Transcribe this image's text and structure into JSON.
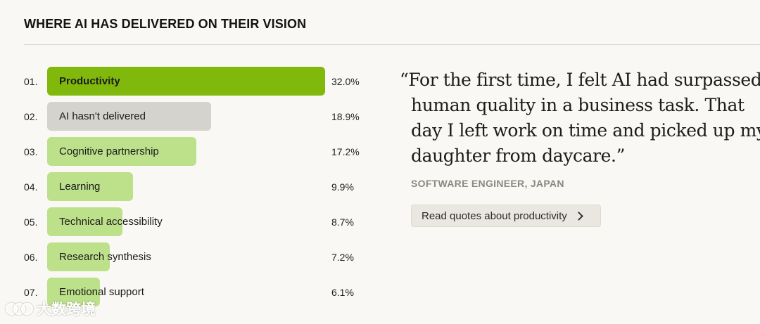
{
  "header": {
    "title": "WHERE AI HAS DELIVERED ON THEIR VISION"
  },
  "chart_data": {
    "type": "bar",
    "orientation": "horizontal",
    "ranks": [
      "01.",
      "02.",
      "03.",
      "04.",
      "05.",
      "06.",
      "07."
    ],
    "categories": [
      "Productivity",
      "AI hasn't delivered",
      "Cognitive partnership",
      "Learning",
      "Technical accessibility",
      "Research synthesis",
      "Emotional support"
    ],
    "values": [
      32.0,
      18.9,
      17.2,
      9.9,
      8.7,
      7.2,
      6.1
    ],
    "value_labels": [
      "32.0%",
      "18.9%",
      "17.2%",
      "9.9%",
      "8.7%",
      "7.2%",
      "6.1%"
    ],
    "xlim": [
      0,
      32.0
    ],
    "grid": false,
    "colors": {
      "highlight": "#80b90b",
      "neutral": "#d4d3ce",
      "default": "#bde08a"
    },
    "bar_styles": [
      "highlight",
      "neutral",
      "default",
      "default",
      "default",
      "default",
      "default"
    ]
  },
  "quote": {
    "text": "“For the first time, I felt AI had surpassed human quality in a business task. That day I left work on time and picked up my daughter from daycare.”",
    "attribution": "SOFTWARE ENGINEER, JAPAN"
  },
  "cta": {
    "label": "Read quotes about productivity",
    "icon": "chevron-right-icon"
  },
  "watermark": {
    "text": "大数跨境",
    "icon": "logo-icon"
  }
}
